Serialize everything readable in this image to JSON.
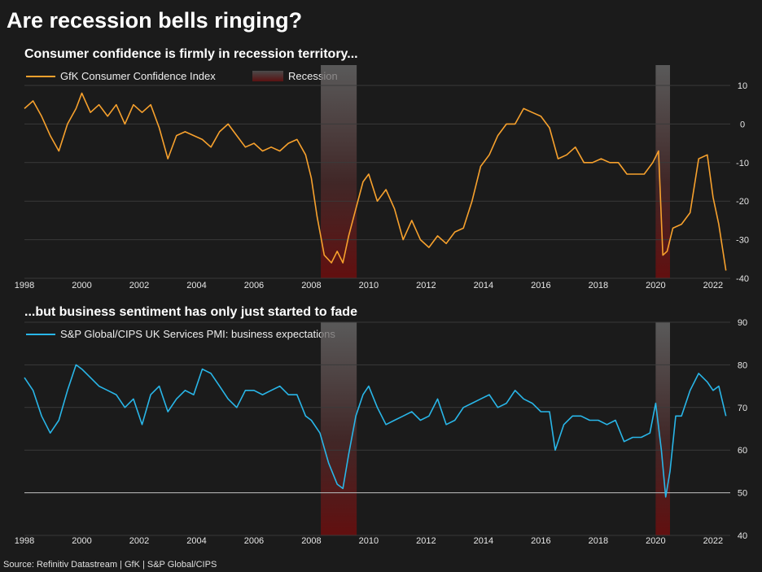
{
  "title": "Are recession bells ringing?",
  "source": "Source: Refinitiv Datastream | GfK | S&P Global/CIPS",
  "chart_data": [
    {
      "type": "line",
      "title": "Consumer confidence is firmly in recession territory...",
      "x_ticks": [
        "1998",
        "2000",
        "2002",
        "2004",
        "2006",
        "2008",
        "2010",
        "2012",
        "2014",
        "2016",
        "2018",
        "2020",
        "2022"
      ],
      "ylim": [
        -40,
        15
      ],
      "y_ticks": [
        10,
        0,
        -10,
        -20,
        -30,
        -40
      ],
      "grid": true,
      "legend_placement": "top-left",
      "recession_label": "Recession",
      "recessions": [
        [
          2008.33,
          2009.58
        ],
        [
          2020.0,
          2020.5
        ]
      ],
      "series": [
        {
          "name": "GfK Consumer Confidence Index",
          "color": "#f7a12d",
          "points": [
            [
              1998.0,
              4
            ],
            [
              1998.3,
              6
            ],
            [
              1998.6,
              2
            ],
            [
              1998.9,
              -3
            ],
            [
              1999.2,
              -7
            ],
            [
              1999.5,
              0
            ],
            [
              1999.8,
              4
            ],
            [
              2000.0,
              8
            ],
            [
              2000.3,
              3
            ],
            [
              2000.6,
              5
            ],
            [
              2000.9,
              2
            ],
            [
              2001.2,
              5
            ],
            [
              2001.5,
              0
            ],
            [
              2001.8,
              5
            ],
            [
              2002.1,
              3
            ],
            [
              2002.4,
              5
            ],
            [
              2002.7,
              -1
            ],
            [
              2003.0,
              -9
            ],
            [
              2003.3,
              -3
            ],
            [
              2003.6,
              -2
            ],
            [
              2003.9,
              -3
            ],
            [
              2004.2,
              -4
            ],
            [
              2004.5,
              -6
            ],
            [
              2004.8,
              -2
            ],
            [
              2005.1,
              0
            ],
            [
              2005.4,
              -3
            ],
            [
              2005.7,
              -6
            ],
            [
              2006.0,
              -5
            ],
            [
              2006.3,
              -7
            ],
            [
              2006.6,
              -6
            ],
            [
              2006.9,
              -7
            ],
            [
              2007.2,
              -5
            ],
            [
              2007.5,
              -4
            ],
            [
              2007.8,
              -8
            ],
            [
              2008.0,
              -14
            ],
            [
              2008.2,
              -24
            ],
            [
              2008.45,
              -34
            ],
            [
              2008.7,
              -36
            ],
            [
              2008.9,
              -33
            ],
            [
              2009.1,
              -36
            ],
            [
              2009.3,
              -29
            ],
            [
              2009.55,
              -22
            ],
            [
              2009.8,
              -15
            ],
            [
              2010.0,
              -13
            ],
            [
              2010.3,
              -20
            ],
            [
              2010.6,
              -17
            ],
            [
              2010.9,
              -22
            ],
            [
              2011.2,
              -30
            ],
            [
              2011.5,
              -25
            ],
            [
              2011.8,
              -30
            ],
            [
              2012.1,
              -32
            ],
            [
              2012.4,
              -29
            ],
            [
              2012.7,
              -31
            ],
            [
              2013.0,
              -28
            ],
            [
              2013.3,
              -27
            ],
            [
              2013.6,
              -20
            ],
            [
              2013.9,
              -11
            ],
            [
              2014.2,
              -8
            ],
            [
              2014.5,
              -3
            ],
            [
              2014.8,
              0
            ],
            [
              2015.1,
              0
            ],
            [
              2015.4,
              4
            ],
            [
              2015.7,
              3
            ],
            [
              2016.0,
              2
            ],
            [
              2016.3,
              -1
            ],
            [
              2016.6,
              -9
            ],
            [
              2016.9,
              -8
            ],
            [
              2017.2,
              -6
            ],
            [
              2017.5,
              -10
            ],
            [
              2017.8,
              -10
            ],
            [
              2018.1,
              -9
            ],
            [
              2018.4,
              -10
            ],
            [
              2018.7,
              -10
            ],
            [
              2019.0,
              -13
            ],
            [
              2019.3,
              -13
            ],
            [
              2019.6,
              -13
            ],
            [
              2019.9,
              -10
            ],
            [
              2020.1,
              -7
            ],
            [
              2020.25,
              -34
            ],
            [
              2020.4,
              -33
            ],
            [
              2020.6,
              -27
            ],
            [
              2020.9,
              -26
            ],
            [
              2021.2,
              -23
            ],
            [
              2021.5,
              -9
            ],
            [
              2021.8,
              -8
            ],
            [
              2022.0,
              -19
            ],
            [
              2022.2,
              -26
            ],
            [
              2022.45,
              -38
            ]
          ]
        }
      ]
    },
    {
      "type": "line",
      "title": "...but business sentiment has only just started to fade",
      "x_ticks": [
        "1998",
        "2000",
        "2002",
        "2004",
        "2006",
        "2008",
        "2010",
        "2012",
        "2014",
        "2016",
        "2018",
        "2020",
        "2022"
      ],
      "ylim": [
        40,
        90
      ],
      "y_ticks": [
        90,
        80,
        70,
        60,
        50,
        40
      ],
      "grid": true,
      "reference_line": 50,
      "legend_placement": "top-left",
      "recessions": [
        [
          2008.33,
          2009.58
        ],
        [
          2020.0,
          2020.5
        ]
      ],
      "series": [
        {
          "name": "S&P Global/CIPS UK Services PMI: business expectations",
          "color": "#29b6e8",
          "points": [
            [
              1998.0,
              77
            ],
            [
              1998.3,
              74
            ],
            [
              1998.6,
              68
            ],
            [
              1998.9,
              64
            ],
            [
              1999.2,
              67
            ],
            [
              1999.5,
              74
            ],
            [
              1999.8,
              80
            ],
            [
              2000.0,
              79
            ],
            [
              2000.3,
              77
            ],
            [
              2000.6,
              75
            ],
            [
              2000.9,
              74
            ],
            [
              2001.2,
              73
            ],
            [
              2001.5,
              70
            ],
            [
              2001.8,
              72
            ],
            [
              2002.1,
              66
            ],
            [
              2002.4,
              73
            ],
            [
              2002.7,
              75
            ],
            [
              2003.0,
              69
            ],
            [
              2003.3,
              72
            ],
            [
              2003.6,
              74
            ],
            [
              2003.9,
              73
            ],
            [
              2004.2,
              79
            ],
            [
              2004.5,
              78
            ],
            [
              2004.8,
              75
            ],
            [
              2005.1,
              72
            ],
            [
              2005.4,
              70
            ],
            [
              2005.7,
              74
            ],
            [
              2006.0,
              74
            ],
            [
              2006.3,
              73
            ],
            [
              2006.6,
              74
            ],
            [
              2006.9,
              75
            ],
            [
              2007.2,
              73
            ],
            [
              2007.5,
              73
            ],
            [
              2007.8,
              68
            ],
            [
              2008.0,
              67
            ],
            [
              2008.3,
              64
            ],
            [
              2008.6,
              57
            ],
            [
              2008.9,
              52
            ],
            [
              2009.1,
              51
            ],
            [
              2009.3,
              59
            ],
            [
              2009.55,
              68
            ],
            [
              2009.8,
              73
            ],
            [
              2010.0,
              75
            ],
            [
              2010.3,
              70
            ],
            [
              2010.6,
              66
            ],
            [
              2010.9,
              67
            ],
            [
              2011.2,
              68
            ],
            [
              2011.5,
              69
            ],
            [
              2011.8,
              67
            ],
            [
              2012.1,
              68
            ],
            [
              2012.4,
              72
            ],
            [
              2012.7,
              66
            ],
            [
              2013.0,
              67
            ],
            [
              2013.3,
              70
            ],
            [
              2013.6,
              71
            ],
            [
              2013.9,
              72
            ],
            [
              2014.2,
              73
            ],
            [
              2014.5,
              70
            ],
            [
              2014.8,
              71
            ],
            [
              2015.1,
              74
            ],
            [
              2015.4,
              72
            ],
            [
              2015.7,
              71
            ],
            [
              2016.0,
              69
            ],
            [
              2016.3,
              69
            ],
            [
              2016.5,
              60
            ],
            [
              2016.8,
              66
            ],
            [
              2017.1,
              68
            ],
            [
              2017.4,
              68
            ],
            [
              2017.7,
              67
            ],
            [
              2018.0,
              67
            ],
            [
              2018.3,
              66
            ],
            [
              2018.6,
              67
            ],
            [
              2018.9,
              62
            ],
            [
              2019.2,
              63
            ],
            [
              2019.5,
              63
            ],
            [
              2019.8,
              64
            ],
            [
              2020.0,
              71
            ],
            [
              2020.2,
              60
            ],
            [
              2020.35,
              49
            ],
            [
              2020.5,
              55
            ],
            [
              2020.7,
              68
            ],
            [
              2020.9,
              68
            ],
            [
              2021.2,
              74
            ],
            [
              2021.5,
              78
            ],
            [
              2021.8,
              76
            ],
            [
              2022.0,
              74
            ],
            [
              2022.2,
              75
            ],
            [
              2022.45,
              68
            ]
          ]
        }
      ]
    }
  ]
}
